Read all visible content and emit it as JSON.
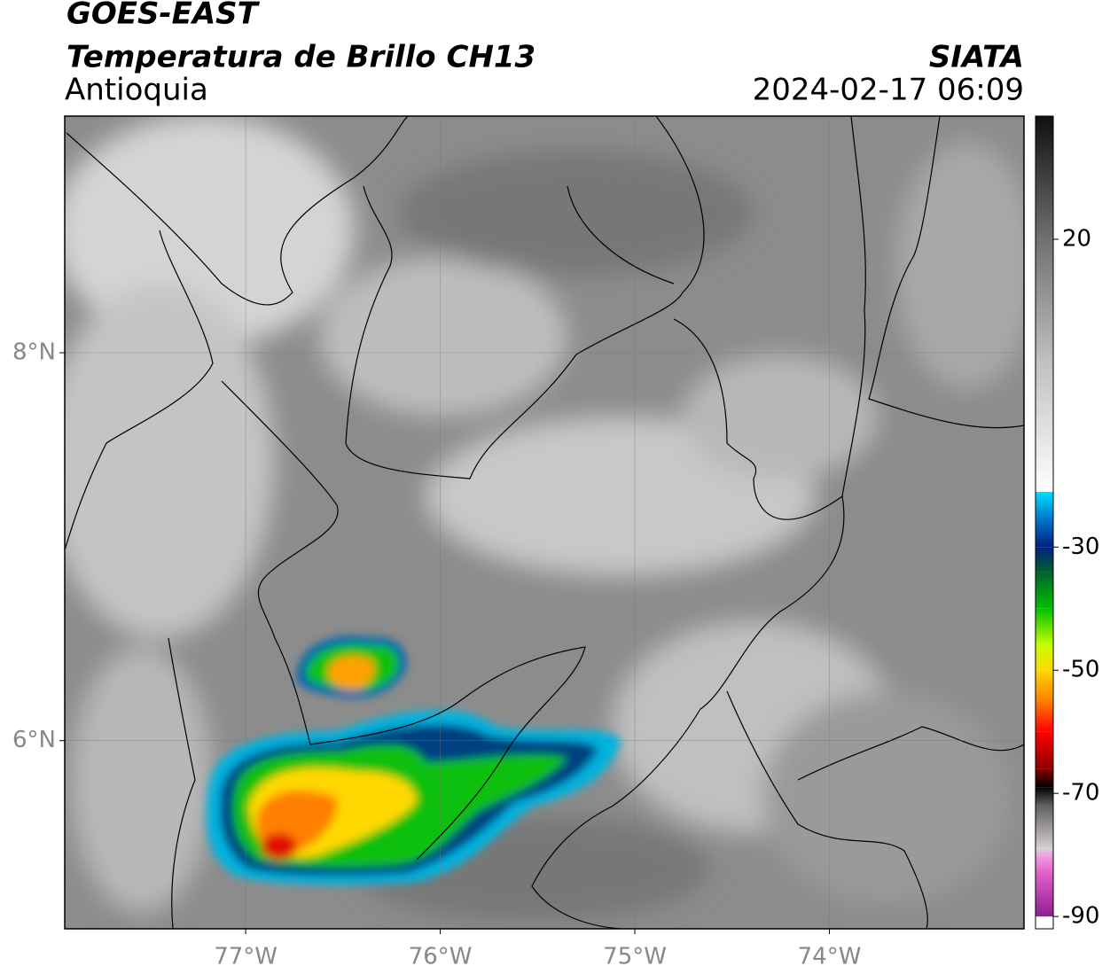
{
  "chart_data": {
    "type": "map",
    "title": "GOES-EAST",
    "subtitle": "Temperatura de Brillo CH13",
    "region": "Antioquia",
    "source": "SIATA",
    "datetime": "2024-02-17 06:09",
    "xlim": [
      -77.93,
      -73.0
    ],
    "ylim": [
      5.03,
      9.22
    ],
    "xticks": [
      {
        "value": -77,
        "label": "77°W"
      },
      {
        "value": -76,
        "label": "76°W"
      },
      {
        "value": -75,
        "label": "75°W"
      },
      {
        "value": -74,
        "label": "74°W"
      }
    ],
    "yticks": [
      {
        "value": 6,
        "label": "6°N"
      },
      {
        "value": 8,
        "label": "8°N"
      }
    ],
    "grid": true,
    "colorbar": {
      "lim": [
        -92,
        40
      ],
      "ticks": [
        20,
        -30,
        -50,
        -70,
        -90
      ],
      "colormap": [
        [
          -92,
          "#ffffff"
        ],
        [
          -90,
          "#ffffff"
        ],
        [
          -90,
          "#8e1f91"
        ],
        [
          -83,
          "#e060c8"
        ],
        [
          -80,
          "#f0a0e0"
        ],
        [
          -79,
          "#d8d0d4"
        ],
        [
          -72,
          "#606060"
        ],
        [
          -69,
          "#000000"
        ],
        [
          -66,
          "#8b0000"
        ],
        [
          -60,
          "#ff0000"
        ],
        [
          -55,
          "#ff7f00"
        ],
        [
          -50,
          "#ffd700"
        ],
        [
          -46,
          "#c8ff00"
        ],
        [
          -40,
          "#00c000"
        ],
        [
          -34,
          "#006030"
        ],
        [
          -30,
          "#002080"
        ],
        [
          -25,
          "#0080d0"
        ],
        [
          -21,
          "#00e0ff"
        ],
        [
          -21,
          "#ffffff"
        ],
        [
          0,
          "#c0c0c0"
        ],
        [
          20,
          "#707070"
        ],
        [
          40,
          "#101010"
        ]
      ]
    }
  }
}
